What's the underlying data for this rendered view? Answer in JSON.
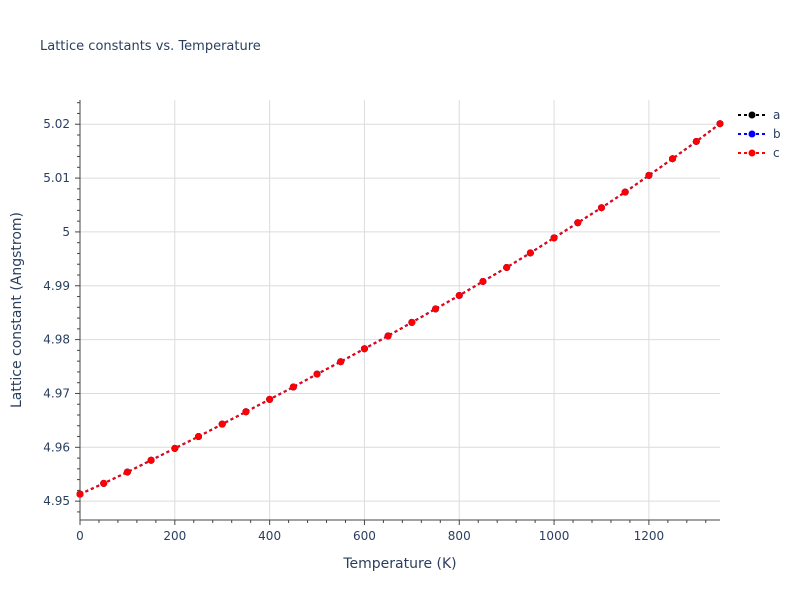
{
  "chart_data": {
    "type": "line",
    "title": "Lattice constants vs. Temperature",
    "xlabel": "Temperature (K)",
    "ylabel": "Lattice constant (Angstrom)",
    "xlim": [
      0,
      1350
    ],
    "ylim": [
      4.9465,
      5.0245
    ],
    "xticks": [
      0,
      200,
      400,
      600,
      800,
      1000,
      1200
    ],
    "xtick_labels": [
      "0",
      "200",
      "400",
      "600",
      "800",
      "1000",
      "1200"
    ],
    "yticks": [
      4.95,
      4.96,
      4.97,
      4.98,
      4.99,
      5.0,
      5.01,
      5.02
    ],
    "ytick_labels": [
      "4.95",
      "4.96",
      "4.97",
      "4.98",
      "4.99",
      "5",
      "5.01",
      "5.02"
    ],
    "grid": true,
    "legend_position": "top-right",
    "x": [
      0,
      50,
      100,
      150,
      200,
      250,
      300,
      350,
      400,
      450,
      500,
      550,
      600,
      650,
      700,
      750,
      800,
      850,
      900,
      950,
      1000,
      1050,
      1100,
      1150,
      1200,
      1250,
      1300,
      1350
    ],
    "series": [
      {
        "name": "a",
        "color": "#000000",
        "values": [
          4.9513,
          4.9533,
          4.9554,
          4.9576,
          4.9598,
          4.962,
          4.9643,
          4.9666,
          4.9689,
          4.9712,
          4.9736,
          4.9759,
          4.9783,
          4.9807,
          4.9832,
          4.9857,
          4.9882,
          4.9908,
          4.9934,
          4.9961,
          4.9989,
          5.0017,
          5.0045,
          5.0074,
          5.0105,
          5.0136,
          5.0168,
          5.0201
        ]
      },
      {
        "name": "b",
        "color": "#0000ff",
        "values": [
          4.9513,
          4.9533,
          4.9554,
          4.9576,
          4.9598,
          4.962,
          4.9643,
          4.9666,
          4.9689,
          4.9712,
          4.9736,
          4.9759,
          4.9783,
          4.9807,
          4.9832,
          4.9857,
          4.9882,
          4.9908,
          4.9934,
          4.9961,
          4.9989,
          5.0017,
          5.0045,
          5.0074,
          5.0105,
          5.0136,
          5.0168,
          5.0201
        ]
      },
      {
        "name": "c",
        "color": "#ff0000",
        "values": [
          4.9513,
          4.9533,
          4.9554,
          4.9576,
          4.9598,
          4.962,
          4.9643,
          4.9666,
          4.9689,
          4.9712,
          4.9736,
          4.9759,
          4.9783,
          4.9807,
          4.9832,
          4.9857,
          4.9882,
          4.9908,
          4.9934,
          4.9961,
          4.9989,
          5.0017,
          5.0045,
          5.0074,
          5.0105,
          5.0136,
          5.0168,
          5.0201
        ]
      }
    ]
  }
}
